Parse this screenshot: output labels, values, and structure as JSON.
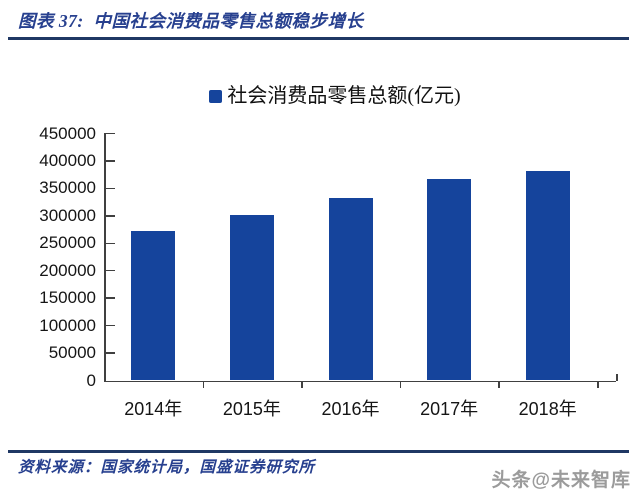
{
  "header": {
    "title": "图表 37:  中国社会消费品零售总额稳步增长"
  },
  "chart_data": {
    "type": "bar",
    "title": "中国社会消费品零售总额稳步增长",
    "legend": "社会消费品零售总额(亿元)",
    "legend_position": "top-center",
    "categories": [
      "2014年",
      "2015年",
      "2016年",
      "2017年",
      "2018年"
    ],
    "values": [
      271896,
      300931,
      332316,
      366262,
      380987
    ],
    "xlabel": "",
    "ylabel": "",
    "ylim": [
      0,
      450000
    ],
    "ytick_step": 50000,
    "ytick_labels": [
      "0",
      "50000",
      "100000",
      "150000",
      "200000",
      "250000",
      "300000",
      "350000",
      "400000",
      "450000"
    ],
    "grid": false,
    "bar_color": "#15449C"
  },
  "footer": {
    "source": "资料来源：国家统计局，国盛证券研究所",
    "watermark": "头条@未来智库"
  },
  "colors": {
    "bar_blue": "#15449C",
    "title_blue": "#27408F",
    "rule_navy": "#1F3864",
    "axis_gray": "#404040",
    "label_black": "#151515",
    "watermark_gray": "#9b9b9b",
    "background": "#ffffff"
  }
}
